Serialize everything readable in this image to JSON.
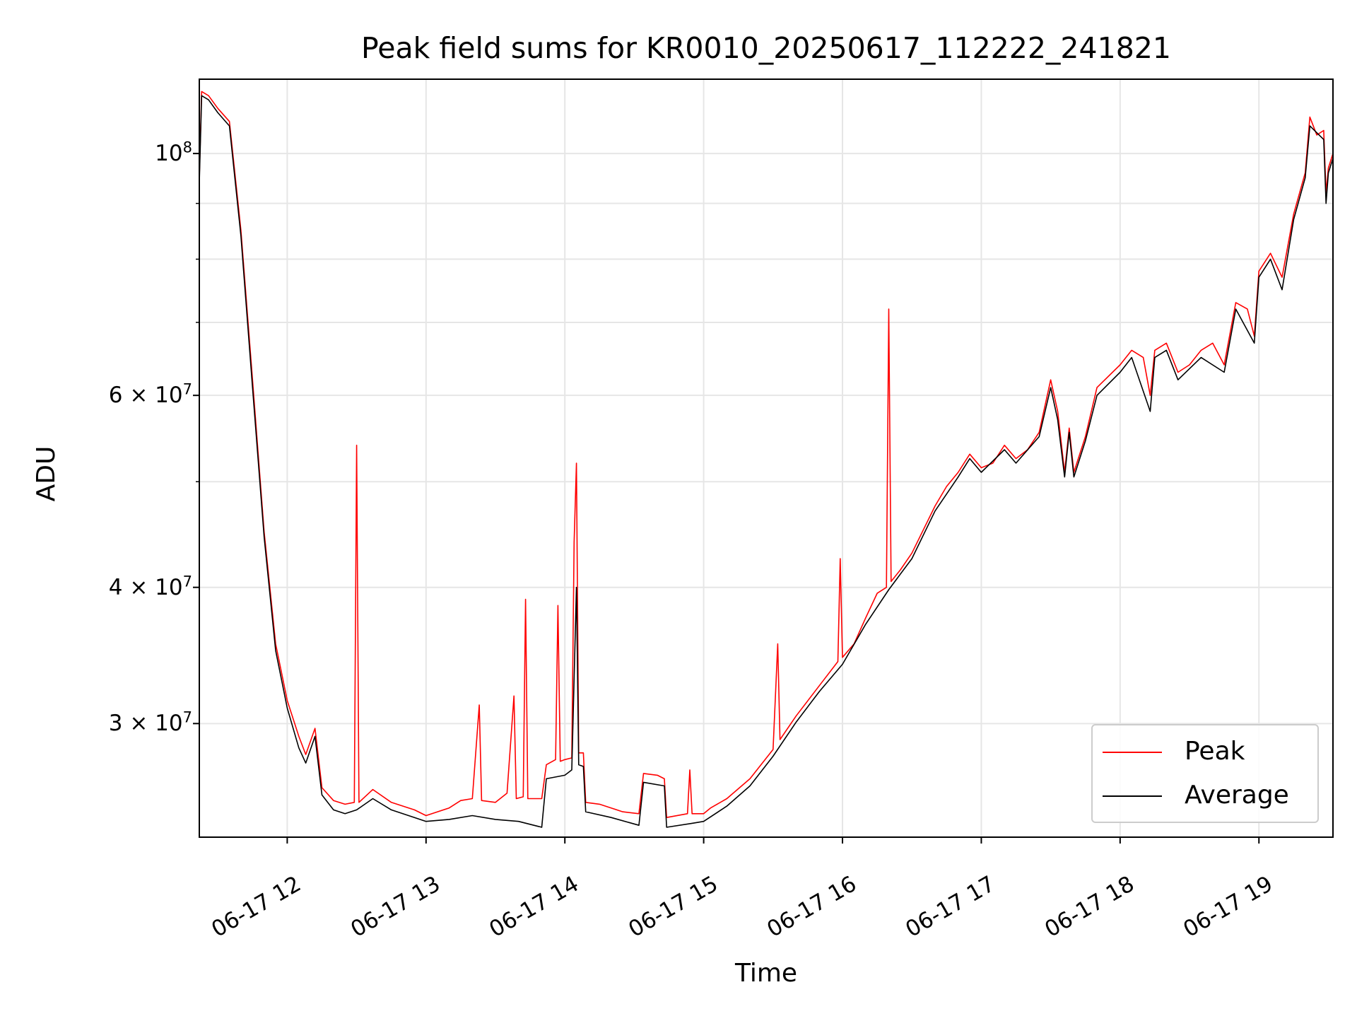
{
  "chart_data": {
    "type": "line",
    "title": "Peak field sums for KR0010_20250617_112222_241821",
    "xlabel": "Time",
    "ylabel": "ADU",
    "y_scale": "log",
    "x_range": [
      "06-17 11:22",
      "06-17 19:32"
    ],
    "ylim": [
      23600000,
      117000000
    ],
    "grid": true,
    "legend_position": "lower right",
    "x_ticks": [
      {
        "value": "06-17 12:00",
        "label": "06-17 12"
      },
      {
        "value": "06-17 13:00",
        "label": "06-17 13"
      },
      {
        "value": "06-17 14:00",
        "label": "06-17 14"
      },
      {
        "value": "06-17 15:00",
        "label": "06-17 15"
      },
      {
        "value": "06-17 16:00",
        "label": "06-17 16"
      },
      {
        "value": "06-17 17:00",
        "label": "06-17 17"
      },
      {
        "value": "06-17 18:00",
        "label": "06-17 18"
      },
      {
        "value": "06-17 19:00",
        "label": "06-17 19"
      }
    ],
    "y_ticks": [
      {
        "value": 30000000,
        "mantissa": "3",
        "exponent": "7"
      },
      {
        "value": 40000000,
        "mantissa": "4",
        "exponent": "7"
      },
      {
        "value": 60000000,
        "mantissa": "6",
        "exponent": "7"
      },
      {
        "value": 100000000,
        "mantissa": "",
        "exponent": "8"
      }
    ],
    "y_minor_ticks": [
      50000000,
      70000000,
      80000000,
      90000000
    ],
    "series": [
      {
        "name": "Peak",
        "color": "#ff0000",
        "points": [
          [
            "06-17 11:22",
            95000000
          ],
          [
            "06-17 11:23",
            114000000
          ],
          [
            "06-17 11:26",
            113000000
          ],
          [
            "06-17 11:30",
            110000000
          ],
          [
            "06-17 11:35",
            107000000
          ],
          [
            "06-17 11:40",
            85000000
          ],
          [
            "06-17 11:45",
            62000000
          ],
          [
            "06-17 11:50",
            45000000
          ],
          [
            "06-17 11:55",
            35500000
          ],
          [
            "06-17 12:00",
            31500000
          ],
          [
            "06-17 12:05",
            29200000
          ],
          [
            "06-17 12:08",
            28100000
          ],
          [
            "06-17 12:12",
            29700000
          ],
          [
            "06-17 12:15",
            26200000
          ],
          [
            "06-17 12:20",
            25500000
          ],
          [
            "06-17 12:25",
            25300000
          ],
          [
            "06-17 12:29",
            25400000
          ],
          [
            "06-17 12:30",
            54000000
          ],
          [
            "06-17 12:31",
            25400000
          ],
          [
            "06-17 12:37",
            26100000
          ],
          [
            "06-17 12:45",
            25400000
          ],
          [
            "06-17 12:55",
            25000000
          ],
          [
            "06-17 13:00",
            24700000
          ],
          [
            "06-17 13:10",
            25100000
          ],
          [
            "06-17 13:15",
            25500000
          ],
          [
            "06-17 13:20",
            25600000
          ],
          [
            "06-17 13:23",
            31200000
          ],
          [
            "06-17 13:24",
            25500000
          ],
          [
            "06-17 13:30",
            25400000
          ],
          [
            "06-17 13:35",
            25900000
          ],
          [
            "06-17 13:38",
            31800000
          ],
          [
            "06-17 13:39",
            25600000
          ],
          [
            "06-17 13:42",
            25700000
          ],
          [
            "06-17 13:43",
            39000000
          ],
          [
            "06-17 13:44",
            25600000
          ],
          [
            "06-17 13:50",
            25600000
          ],
          [
            "06-17 13:52",
            27500000
          ],
          [
            "06-17 13:56",
            27800000
          ],
          [
            "06-17 13:57",
            38500000
          ],
          [
            "06-17 13:58",
            27700000
          ],
          [
            "06-17 14:00",
            27800000
          ],
          [
            "06-17 14:03",
            27900000
          ],
          [
            "06-17 14:04",
            44000000
          ],
          [
            "06-17 14:05",
            52000000
          ],
          [
            "06-17 14:06",
            28200000
          ],
          [
            "06-17 14:08",
            28200000
          ],
          [
            "06-17 14:09",
            25400000
          ],
          [
            "06-17 14:15",
            25300000
          ],
          [
            "06-17 14:20",
            25100000
          ],
          [
            "06-17 14:25",
            24900000
          ],
          [
            "06-17 14:32",
            24800000
          ],
          [
            "06-17 14:34",
            27000000
          ],
          [
            "06-17 14:40",
            26900000
          ],
          [
            "06-17 14:43",
            26700000
          ],
          [
            "06-17 14:44",
            24600000
          ],
          [
            "06-17 14:53",
            24800000
          ],
          [
            "06-17 14:54",
            27200000
          ],
          [
            "06-17 14:55",
            24800000
          ],
          [
            "06-17 15:00",
            24800000
          ],
          [
            "06-17 15:03",
            25100000
          ],
          [
            "06-17 15:10",
            25600000
          ],
          [
            "06-17 15:20",
            26700000
          ],
          [
            "06-17 15:30",
            28400000
          ],
          [
            "06-17 15:32",
            35500000
          ],
          [
            "06-17 15:33",
            29000000
          ],
          [
            "06-17 15:40",
            30500000
          ],
          [
            "06-17 15:50",
            32500000
          ],
          [
            "06-17 15:58",
            34200000
          ],
          [
            "06-17 15:59",
            42500000
          ],
          [
            "06-17 16:00",
            34500000
          ],
          [
            "06-17 16:05",
            35500000
          ],
          [
            "06-17 16:10",
            37500000
          ],
          [
            "06-17 16:15",
            39500000
          ],
          [
            "06-17 16:19",
            40000000
          ],
          [
            "06-17 16:20",
            72000000
          ],
          [
            "06-17 16:21",
            40500000
          ],
          [
            "06-17 16:25",
            41500000
          ],
          [
            "06-17 16:30",
            43000000
          ],
          [
            "06-17 16:40",
            47500000
          ],
          [
            "06-17 16:45",
            49500000
          ],
          [
            "06-17 16:50",
            51000000
          ],
          [
            "06-17 16:55",
            53000000
          ],
          [
            "06-17 17:00",
            51500000
          ],
          [
            "06-17 17:05",
            52000000
          ],
          [
            "06-17 17:10",
            54000000
          ],
          [
            "06-17 17:15",
            52500000
          ],
          [
            "06-17 17:20",
            53500000
          ],
          [
            "06-17 17:25",
            55500000
          ],
          [
            "06-17 17:30",
            62000000
          ],
          [
            "06-17 17:33",
            58000000
          ],
          [
            "06-17 17:36",
            51000000
          ],
          [
            "06-17 17:38",
            56000000
          ],
          [
            "06-17 17:40",
            51000000
          ],
          [
            "06-17 17:45",
            55000000
          ],
          [
            "06-17 17:50",
            61000000
          ],
          [
            "06-17 18:00",
            64000000
          ],
          [
            "06-17 18:05",
            66000000
          ],
          [
            "06-17 18:10",
            65000000
          ],
          [
            "06-17 18:13",
            60000000
          ],
          [
            "06-17 18:15",
            66000000
          ],
          [
            "06-17 18:20",
            67000000
          ],
          [
            "06-17 18:25",
            63000000
          ],
          [
            "06-17 18:30",
            64000000
          ],
          [
            "06-17 18:35",
            66000000
          ],
          [
            "06-17 18:40",
            67000000
          ],
          [
            "06-17 18:45",
            64000000
          ],
          [
            "06-17 18:50",
            73000000
          ],
          [
            "06-17 18:55",
            72000000
          ],
          [
            "06-17 18:58",
            68000000
          ],
          [
            "06-17 19:00",
            78000000
          ],
          [
            "06-17 19:05",
            81000000
          ],
          [
            "06-17 19:10",
            77000000
          ],
          [
            "06-17 19:15",
            88000000
          ],
          [
            "06-17 19:20",
            96000000
          ],
          [
            "06-17 19:22",
            108000000
          ],
          [
            "06-17 19:25",
            104000000
          ],
          [
            "06-17 19:28",
            105000000
          ],
          [
            "06-17 19:29",
            92000000
          ],
          [
            "06-17 19:30",
            97000000
          ],
          [
            "06-17 19:32",
            100000000
          ]
        ]
      },
      {
        "name": "Average",
        "color": "#000000",
        "points": [
          [
            "06-17 11:22",
            94000000
          ],
          [
            "06-17 11:23",
            113000000
          ],
          [
            "06-17 11:26",
            112000000
          ],
          [
            "06-17 11:30",
            109000000
          ],
          [
            "06-17 11:35",
            106000000
          ],
          [
            "06-17 11:40",
            84000000
          ],
          [
            "06-17 11:45",
            61000000
          ],
          [
            "06-17 11:50",
            44500000
          ],
          [
            "06-17 11:55",
            35000000
          ],
          [
            "06-17 12:00",
            31000000
          ],
          [
            "06-17 12:05",
            28500000
          ],
          [
            "06-17 12:08",
            27600000
          ],
          [
            "06-17 12:12",
            29200000
          ],
          [
            "06-17 12:15",
            25800000
          ],
          [
            "06-17 12:20",
            25000000
          ],
          [
            "06-17 12:25",
            24800000
          ],
          [
            "06-17 12:30",
            25000000
          ],
          [
            "06-17 12:37",
            25600000
          ],
          [
            "06-17 12:45",
            25000000
          ],
          [
            "06-17 12:55",
            24600000
          ],
          [
            "06-17 13:00",
            24400000
          ],
          [
            "06-17 13:10",
            24500000
          ],
          [
            "06-17 13:20",
            24700000
          ],
          [
            "06-17 13:30",
            24500000
          ],
          [
            "06-17 13:40",
            24400000
          ],
          [
            "06-17 13:50",
            24100000
          ],
          [
            "06-17 13:52",
            26700000
          ],
          [
            "06-17 14:00",
            26900000
          ],
          [
            "06-17 14:03",
            27200000
          ],
          [
            "06-17 14:05",
            40000000
          ],
          [
            "06-17 14:06",
            27500000
          ],
          [
            "06-17 14:08",
            27400000
          ],
          [
            "06-17 14:09",
            24900000
          ],
          [
            "06-17 14:20",
            24600000
          ],
          [
            "06-17 14:32",
            24200000
          ],
          [
            "06-17 14:34",
            26500000
          ],
          [
            "06-17 14:43",
            26300000
          ],
          [
            "06-17 14:44",
            24100000
          ],
          [
            "06-17 14:55",
            24300000
          ],
          [
            "06-17 15:00",
            24400000
          ],
          [
            "06-17 15:10",
            25200000
          ],
          [
            "06-17 15:20",
            26300000
          ],
          [
            "06-17 15:30",
            28000000
          ],
          [
            "06-17 15:40",
            30100000
          ],
          [
            "06-17 15:50",
            32100000
          ],
          [
            "06-17 16:00",
            34000000
          ],
          [
            "06-17 16:10",
            37000000
          ],
          [
            "06-17 16:20",
            39800000
          ],
          [
            "06-17 16:30",
            42500000
          ],
          [
            "06-17 16:40",
            47000000
          ],
          [
            "06-17 16:50",
            50500000
          ],
          [
            "06-17 16:55",
            52500000
          ],
          [
            "06-17 17:00",
            51000000
          ],
          [
            "06-17 17:10",
            53500000
          ],
          [
            "06-17 17:15",
            52000000
          ],
          [
            "06-17 17:25",
            55000000
          ],
          [
            "06-17 17:30",
            61000000
          ],
          [
            "06-17 17:33",
            57000000
          ],
          [
            "06-17 17:36",
            50500000
          ],
          [
            "06-17 17:38",
            55500000
          ],
          [
            "06-17 17:40",
            50500000
          ],
          [
            "06-17 17:45",
            54500000
          ],
          [
            "06-17 17:50",
            60000000
          ],
          [
            "06-17 18:00",
            63000000
          ],
          [
            "06-17 18:05",
            65000000
          ],
          [
            "06-17 18:13",
            58000000
          ],
          [
            "06-17 18:15",
            65000000
          ],
          [
            "06-17 18:20",
            66000000
          ],
          [
            "06-17 18:25",
            62000000
          ],
          [
            "06-17 18:35",
            65000000
          ],
          [
            "06-17 18:45",
            63000000
          ],
          [
            "06-17 18:50",
            72000000
          ],
          [
            "06-17 18:58",
            67000000
          ],
          [
            "06-17 19:00",
            77000000
          ],
          [
            "06-17 19:05",
            80000000
          ],
          [
            "06-17 19:10",
            75000000
          ],
          [
            "06-17 19:15",
            87000000
          ],
          [
            "06-17 19:20",
            95000000
          ],
          [
            "06-17 19:22",
            106000000
          ],
          [
            "06-17 19:28",
            103000000
          ],
          [
            "06-17 19:29",
            90000000
          ],
          [
            "06-17 19:30",
            96000000
          ],
          [
            "06-17 19:32",
            99000000
          ]
        ]
      }
    ]
  }
}
